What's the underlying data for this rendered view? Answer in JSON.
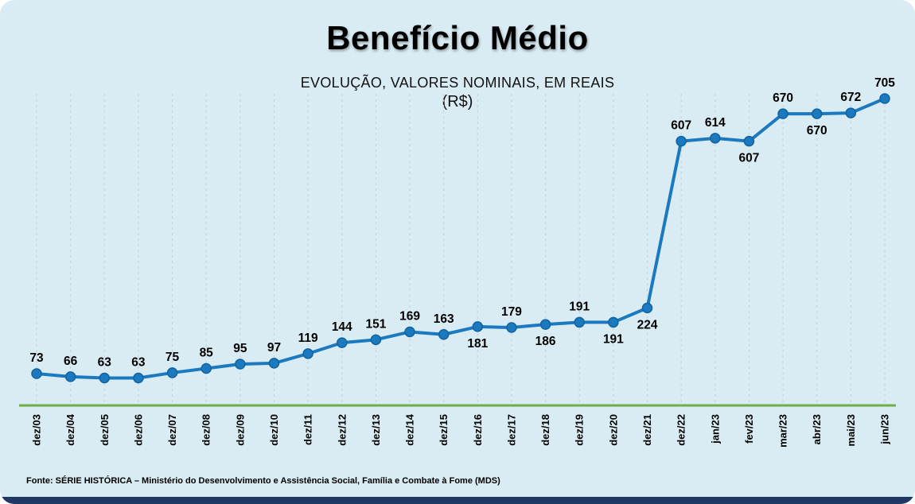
{
  "header": {
    "title": "Benefício Médio",
    "subtitle": "EVOLUÇÃO, VALORES NOMINAIS, EM REAIS",
    "currency_line": "(R$)"
  },
  "footer": {
    "source": "Fonte: SÉRIE HISTÓRICA – Ministério do Desenvolvimento e Assistência Social, Família e Combate à Fome (MDS)"
  },
  "colors": {
    "background": "#d9ebf3",
    "line": "#1b79c0",
    "marker_edge": "#12639e",
    "axis_green": "#6fae44",
    "gridline": "#c3d2da",
    "footer_bar": "#203864",
    "text": "#000000"
  },
  "chart_data": {
    "type": "line",
    "title": "Benefício Médio",
    "subtitle": "EVOLUÇÃO, VALORES NOMINAIS, EM REAIS (R$)",
    "xlabel": "",
    "ylabel": "",
    "ylim": [
      0,
      760
    ],
    "grid": "vertical-dashed",
    "legend": "none",
    "marker": "circle",
    "categories": [
      "dez/03",
      "dez/04",
      "dez/05",
      "dez/06",
      "dez/07",
      "dez/08",
      "dez/09",
      "dez/10",
      "dez/11",
      "dez/12",
      "dez/13",
      "dez/14",
      "dez/15",
      "dez/16",
      "dez/17",
      "dez/18",
      "dez/19",
      "dez/20",
      "dez/21",
      "dez/22",
      "jan/23",
      "fev/23",
      "mar/23",
      "abr/23",
      "mai/23",
      "jun/23"
    ],
    "values": [
      73,
      66,
      63,
      63,
      75,
      85,
      95,
      97,
      119,
      144,
      151,
      169,
      163,
      181,
      179,
      186,
      191,
      191,
      224,
      607,
      614,
      607,
      670,
      670,
      672,
      705
    ],
    "label_positions": [
      "above",
      "above",
      "above",
      "above",
      "above",
      "above",
      "above",
      "above",
      "above",
      "above",
      "above",
      "above",
      "above",
      "below",
      "above",
      "below",
      "above",
      "below",
      "below",
      "above",
      "above",
      "below",
      "above",
      "below",
      "above",
      "above"
    ]
  }
}
